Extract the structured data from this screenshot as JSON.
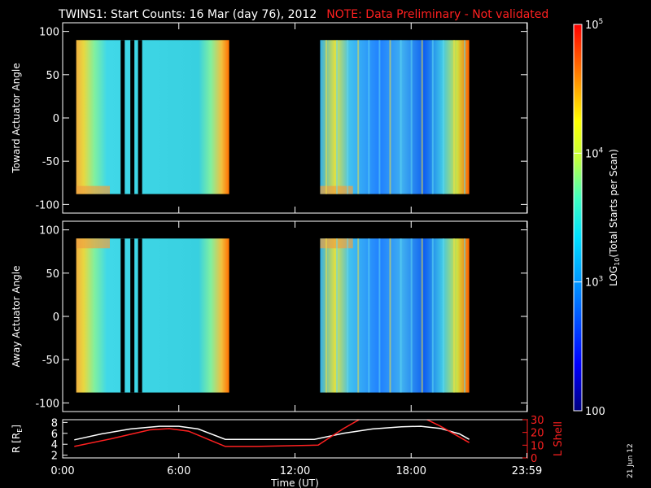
{
  "title": {
    "main": "TWINS1: Start Counts: 16 Mar (day  76), 2012",
    "note": "NOTE: Data Preliminary - Not validated"
  },
  "plot_date": "21 Jun 12",
  "colors": {
    "background": "#000000",
    "r_line": "#ffffff",
    "lshell_line": "#ff2020"
  },
  "chart_data": [
    {
      "type": "heatmap",
      "ylabel": "Toward Actuator Angle",
      "ylim": [
        -110,
        110
      ],
      "yticks": [
        "100",
        "50",
        "0",
        "-50",
        "-100"
      ],
      "ytick_values": [
        100,
        50,
        0,
        -50,
        -100
      ],
      "xlim": [
        0,
        24
      ],
      "data_angle_range": [
        -88,
        90
      ],
      "data_time_blocks": [
        [
          0.7,
          8.6
        ],
        [
          13.3,
          21.0
        ]
      ],
      "gap_times": [
        3.1,
        3.6,
        4.0
      ],
      "colormap_range": [
        100,
        100000
      ]
    },
    {
      "type": "heatmap",
      "ylabel": "Away Actuator Angle",
      "ylim": [
        -110,
        110
      ],
      "yticks": [
        "100",
        "50",
        "0",
        "-50",
        "-100"
      ],
      "ytick_values": [
        100,
        50,
        0,
        -50,
        -100
      ],
      "xlim": [
        0,
        24
      ],
      "data_angle_range": [
        -88,
        90
      ],
      "data_time_blocks": [
        [
          0.7,
          8.6
        ],
        [
          13.3,
          21.0
        ]
      ],
      "gap_times": [
        3.1,
        3.6,
        4.0
      ],
      "colormap_range": [
        100,
        100000
      ]
    },
    {
      "type": "line",
      "xlabel": "Time (UT)",
      "xlim": [
        0,
        24
      ],
      "xticks": [
        "0:00",
        "6:00",
        "12:00",
        "18:00",
        "23:59"
      ],
      "xtick_values": [
        0,
        6,
        12,
        18,
        23.98
      ],
      "ylabel_left": "R [R",
      "ylabel_left_sub": "E",
      "ylabel_left_end": "]",
      "ylim_left": [
        1.5,
        8.5
      ],
      "yticks_left": [
        "8",
        "6",
        "4",
        "2"
      ],
      "ytick_values_left": [
        8,
        6,
        4,
        2
      ],
      "ylabel_right": "L Shell",
      "ylim_right": [
        0,
        30
      ],
      "yticks_right": [
        "30",
        "20",
        "10",
        "0"
      ],
      "ytick_values_right": [
        30,
        20,
        10,
        0
      ],
      "series": [
        {
          "axis": "left",
          "color": "#ffffff",
          "x": [
            0.6,
            2,
            3.5,
            5,
            6,
            7,
            8.4,
            13.0,
            14.5,
            16,
            17.5,
            18.5,
            19.5,
            20.5,
            21
          ],
          "y": [
            4.8,
            5.9,
            6.8,
            7.3,
            7.3,
            6.8,
            4.9,
            4.9,
            6.0,
            6.8,
            7.2,
            7.3,
            6.9,
            5.9,
            4.9
          ]
        },
        {
          "axis": "right",
          "color": "#ff2020",
          "x": [
            0.6,
            2.5,
            4.5,
            5.5,
            6.5,
            8.4,
            10,
            13.2,
            14.5,
            16,
            18,
            19.5,
            21
          ],
          "y": [
            9,
            15,
            22,
            23,
            21,
            9,
            9,
            10,
            23,
            36,
            36,
            25,
            12
          ]
        }
      ]
    },
    {
      "type": "colorbar",
      "label_pre": "LOG",
      "label_sub": "10",
      "label_post": "(Total Starts per Scan)",
      "ticks": [
        {
          "base": "10",
          "exp": "5",
          "value": 100000
        },
        {
          "base": "10",
          "exp": "4",
          "value": 10000
        },
        {
          "base": "10",
          "exp": "3",
          "value": 1000
        },
        {
          "base": "100",
          "exp": "",
          "value": 100
        }
      ]
    }
  ]
}
